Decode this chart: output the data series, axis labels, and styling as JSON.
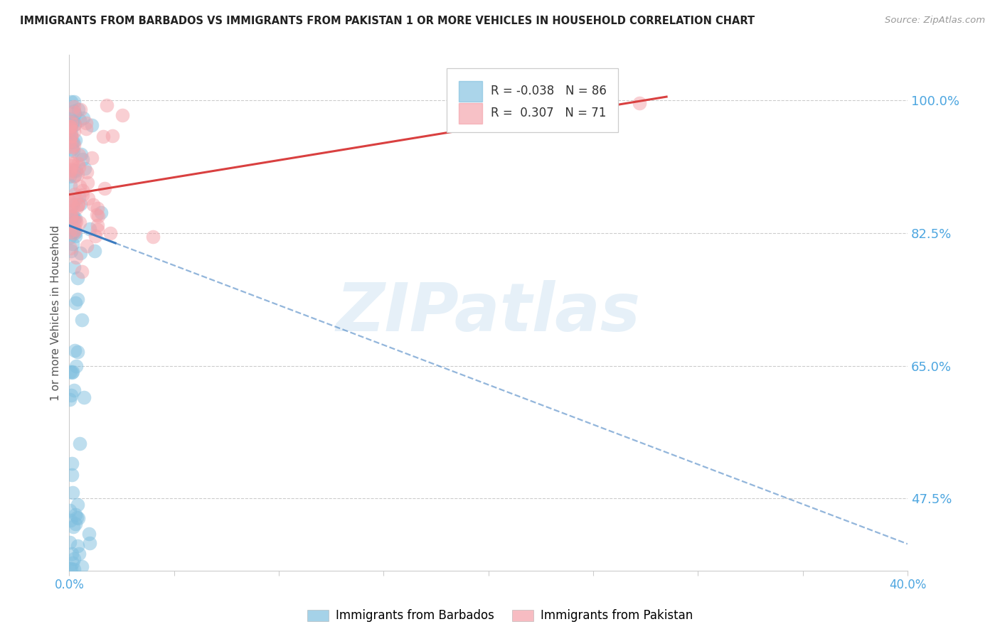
{
  "title": "IMMIGRANTS FROM BARBADOS VS IMMIGRANTS FROM PAKISTAN 1 OR MORE VEHICLES IN HOUSEHOLD CORRELATION CHART",
  "source": "Source: ZipAtlas.com",
  "ylabel": "1 or more Vehicles in Household",
  "ytick_labels_right": [
    "100.0%",
    "82.5%",
    "65.0%",
    "47.5%"
  ],
  "ytick_vals_right": [
    1.0,
    0.825,
    0.65,
    0.475
  ],
  "xmin": 0.0,
  "xmax": 0.4,
  "ymin": 0.38,
  "ymax": 1.06,
  "barbados_R": -0.038,
  "barbados_N": 86,
  "pakistan_R": 0.307,
  "pakistan_N": 71,
  "barbados_color": "#7fbfdf",
  "pakistan_color": "#f4a0a8",
  "barbados_line_color": "#3a7abf",
  "pakistan_line_color": "#d94040",
  "barbados_line_solid_end": 0.022,
  "barbados_line_x0": 0.0,
  "barbados_line_y0": 0.835,
  "barbados_line_x1": 0.4,
  "barbados_line_y1": 0.415,
  "pakistan_line_x0": 0.0,
  "pakistan_line_y0": 0.876,
  "pakistan_line_x1": 0.285,
  "pakistan_line_y1": 1.005,
  "watermark_text": "ZIPatlas",
  "legend_barbados": "Immigrants from Barbados",
  "legend_pakistan": "Immigrants from Pakistan",
  "background_color": "#ffffff",
  "grid_color": "#cccccc",
  "axis_label_color": "#4da6e0",
  "title_color": "#222222"
}
